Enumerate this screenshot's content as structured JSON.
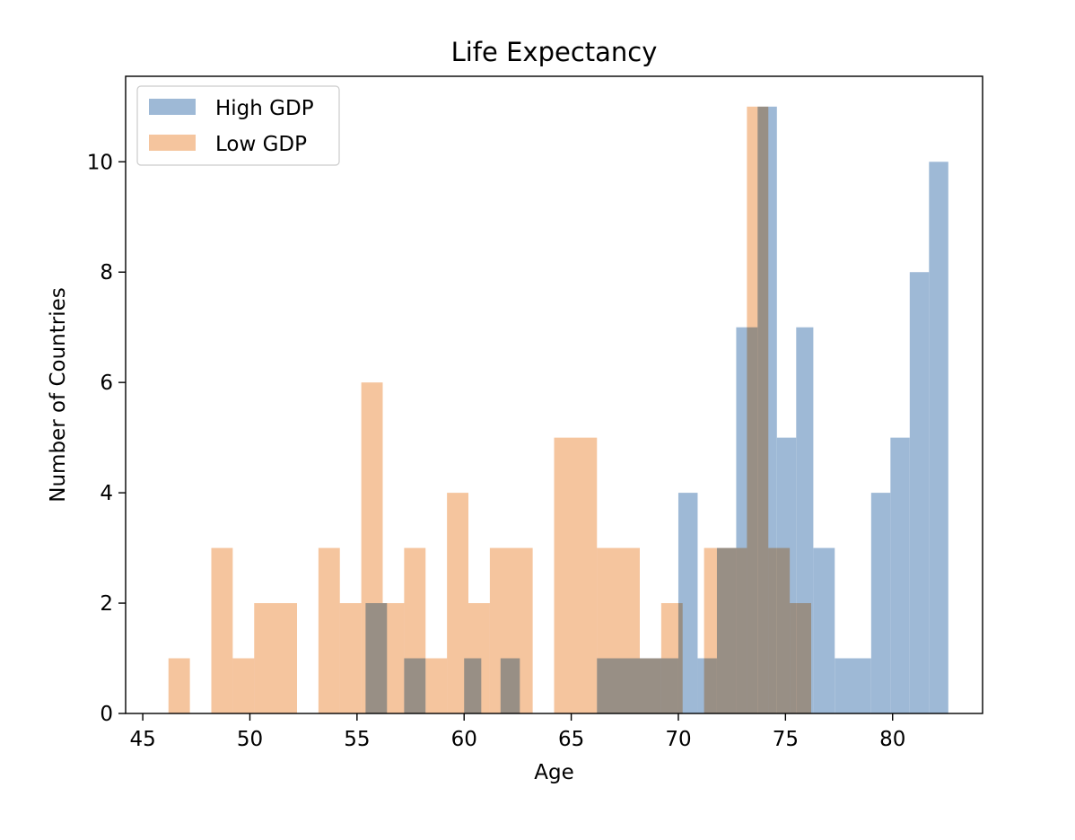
{
  "chart_data": {
    "type": "histogram",
    "title": "Life Expectancy",
    "xlabel": "Age",
    "ylabel": "Number of Countries",
    "xlim": [
      44.2,
      84.2
    ],
    "ylim": [
      0,
      11.55
    ],
    "xticks": [
      45,
      50,
      55,
      60,
      65,
      70,
      75,
      80
    ],
    "yticks": [
      0,
      2,
      4,
      6,
      8,
      10
    ],
    "grid": false,
    "legend_position": "upper-left",
    "series": [
      {
        "name": "High GDP",
        "color": "#9eb9d6",
        "bins": [
          {
            "x0": 55.4,
            "x1": 56.4,
            "count": 2
          },
          {
            "x0": 57.2,
            "x1": 58.2,
            "count": 1
          },
          {
            "x0": 60.0,
            "x1": 60.8,
            "count": 1
          },
          {
            "x0": 61.7,
            "x1": 62.6,
            "count": 1
          },
          {
            "x0": 66.2,
            "x1": 70.0,
            "count": 1
          },
          {
            "x0": 70.0,
            "x1": 70.9,
            "count": 4
          },
          {
            "x0": 70.9,
            "x1": 71.8,
            "count": 1
          },
          {
            "x0": 71.8,
            "x1": 72.7,
            "count": 3
          },
          {
            "x0": 72.7,
            "x1": 73.7,
            "count": 7
          },
          {
            "x0": 73.7,
            "x1": 74.6,
            "count": 11
          },
          {
            "x0": 74.6,
            "x1": 75.5,
            "count": 5
          },
          {
            "x0": 75.5,
            "x1": 76.3,
            "count": 7
          },
          {
            "x0": 76.3,
            "x1": 77.3,
            "count": 3
          },
          {
            "x0": 77.3,
            "x1": 79.0,
            "count": 1
          },
          {
            "x0": 79.0,
            "x1": 79.9,
            "count": 4
          },
          {
            "x0": 79.9,
            "x1": 80.8,
            "count": 5
          },
          {
            "x0": 80.8,
            "x1": 81.7,
            "count": 8
          },
          {
            "x0": 81.7,
            "x1": 82.6,
            "count": 10
          }
        ]
      },
      {
        "name": "Low GDP",
        "color": "#f5c59e",
        "bins": [
          {
            "x0": 46.2,
            "x1": 47.2,
            "count": 1
          },
          {
            "x0": 48.2,
            "x1": 49.2,
            "count": 3
          },
          {
            "x0": 49.2,
            "x1": 50.2,
            "count": 1
          },
          {
            "x0": 50.2,
            "x1": 52.2,
            "count": 2
          },
          {
            "x0": 53.2,
            "x1": 54.2,
            "count": 3
          },
          {
            "x0": 54.2,
            "x1": 55.2,
            "count": 2
          },
          {
            "x0": 55.2,
            "x1": 56.2,
            "count": 6
          },
          {
            "x0": 56.2,
            "x1": 57.2,
            "count": 2
          },
          {
            "x0": 57.2,
            "x1": 58.2,
            "count": 3
          },
          {
            "x0": 58.2,
            "x1": 59.2,
            "count": 1
          },
          {
            "x0": 59.2,
            "x1": 60.2,
            "count": 4
          },
          {
            "x0": 60.2,
            "x1": 61.2,
            "count": 2
          },
          {
            "x0": 61.2,
            "x1": 63.2,
            "count": 3
          },
          {
            "x0": 64.2,
            "x1": 66.2,
            "count": 5
          },
          {
            "x0": 66.2,
            "x1": 68.2,
            "count": 3
          },
          {
            "x0": 68.2,
            "x1": 69.2,
            "count": 1
          },
          {
            "x0": 69.2,
            "x1": 70.2,
            "count": 2
          },
          {
            "x0": 71.2,
            "x1": 72.2,
            "count": 3
          },
          {
            "x0": 72.2,
            "x1": 73.2,
            "count": 3
          },
          {
            "x0": 73.2,
            "x1": 74.2,
            "count": 11
          },
          {
            "x0": 74.2,
            "x1": 75.2,
            "count": 3
          },
          {
            "x0": 75.2,
            "x1": 76.2,
            "count": 2
          }
        ]
      }
    ]
  }
}
